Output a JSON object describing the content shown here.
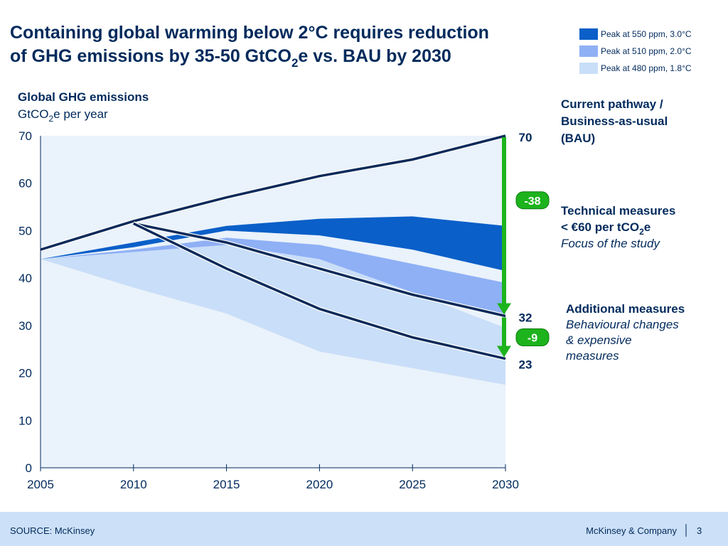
{
  "chart_data": {
    "type": "band-line",
    "title_parts": [
      "Containing global warming below 2°C requires reduction",
      "of GHG emissions by 35-50 GtCO",
      "2",
      "e vs. BAU by 2030"
    ],
    "y_label_parts": [
      "Global GHG emissions",
      "GtCO",
      "2",
      "e per year"
    ],
    "x": [
      2005,
      2010,
      2015,
      2020,
      2025,
      2030
    ],
    "xlim": [
      2005,
      2030
    ],
    "xticks": [
      2005,
      2010,
      2015,
      2020,
      2025,
      2030
    ],
    "ylim": [
      0,
      70
    ],
    "yticks": [
      0,
      10,
      20,
      30,
      40,
      50,
      60,
      70
    ],
    "bands": [
      {
        "name": "Peak at 480 ppm, 1.8°C",
        "color": "#c9def8",
        "upper": [
          44,
          45.5,
          47,
          44,
          37,
          29.5
        ],
        "lower": [
          44,
          38,
          32.5,
          24.5,
          21,
          17.5
        ]
      },
      {
        "name": "Peak at 510 ppm, 2.0°C",
        "color": "#8fb0f5",
        "upper": [
          44,
          46,
          48.5,
          47,
          43,
          39
        ],
        "lower": [
          44,
          45.5,
          47,
          44,
          37,
          32
        ]
      },
      {
        "name": "Peak at 550 ppm, 3.0°C",
        "color": "#0a5fc8",
        "upper": [
          44,
          47.5,
          51,
          52.5,
          53,
          51
        ],
        "lower": [
          44,
          46.5,
          50,
          49,
          46,
          41.5
        ]
      }
    ],
    "series": [
      {
        "color": "#0a2a5a",
        "values": [
          46,
          52,
          57,
          61.5,
          65,
          70
        ]
      },
      {
        "color": "#0a2a5a",
        "values": [
          null,
          51.5,
          47.5,
          42,
          36.5,
          32
        ]
      },
      {
        "color": "#0a2a5a",
        "values": [
          null,
          51.5,
          42,
          33.5,
          27.5,
          23
        ]
      }
    ],
    "reductions": [
      -38,
      -9
    ],
    "annotations": [
      [
        "Current pathway /",
        "Business-as-usual",
        "(BAU)"
      ],
      [
        "Technical measures",
        "< €60 per tCO",
        "2",
        "e",
        "Focus of the study"
      ],
      [
        "Additional measures",
        "Behavioural changes",
        "& expensive",
        "measures"
      ]
    ],
    "source": "SOURCE: McKinsey",
    "company": "McKinsey & Company",
    "page": "3"
  }
}
